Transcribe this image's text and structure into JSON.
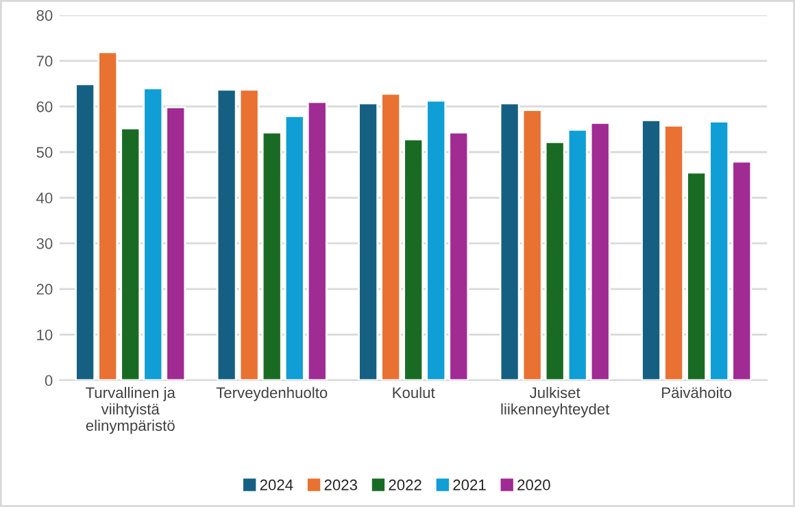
{
  "chart_data": {
    "type": "bar",
    "categories": [
      "Turvallinen ja\nviihtyistä\nelinympäristö",
      "Terveydenhuolto",
      "Koulut",
      "Julkiset\nliikenneyhteydet",
      "Päivähoito"
    ],
    "series": [
      {
        "name": "2024",
        "color": "#156082",
        "values": [
          64.9,
          63.7,
          60.7,
          60.7,
          57.0
        ]
      },
      {
        "name": "2023",
        "color": "#e97132",
        "values": [
          71.9,
          63.7,
          62.8,
          59.2,
          55.8
        ]
      },
      {
        "name": "2022",
        "color": "#196b24",
        "values": [
          55.2,
          54.3,
          52.8,
          52.2,
          45.5
        ]
      },
      {
        "name": "2021",
        "color": "#0f9ed5",
        "values": [
          64.0,
          57.9,
          61.3,
          54.9,
          56.7
        ]
      },
      {
        "name": "2020",
        "color": "#a02b93",
        "values": [
          59.8,
          61.0,
          54.3,
          56.4,
          47.9
        ]
      }
    ],
    "ylim": [
      0,
      80
    ],
    "yticks": [
      0,
      10,
      20,
      30,
      40,
      50,
      60,
      70,
      80
    ],
    "grid": "y",
    "legend": "bottom"
  }
}
